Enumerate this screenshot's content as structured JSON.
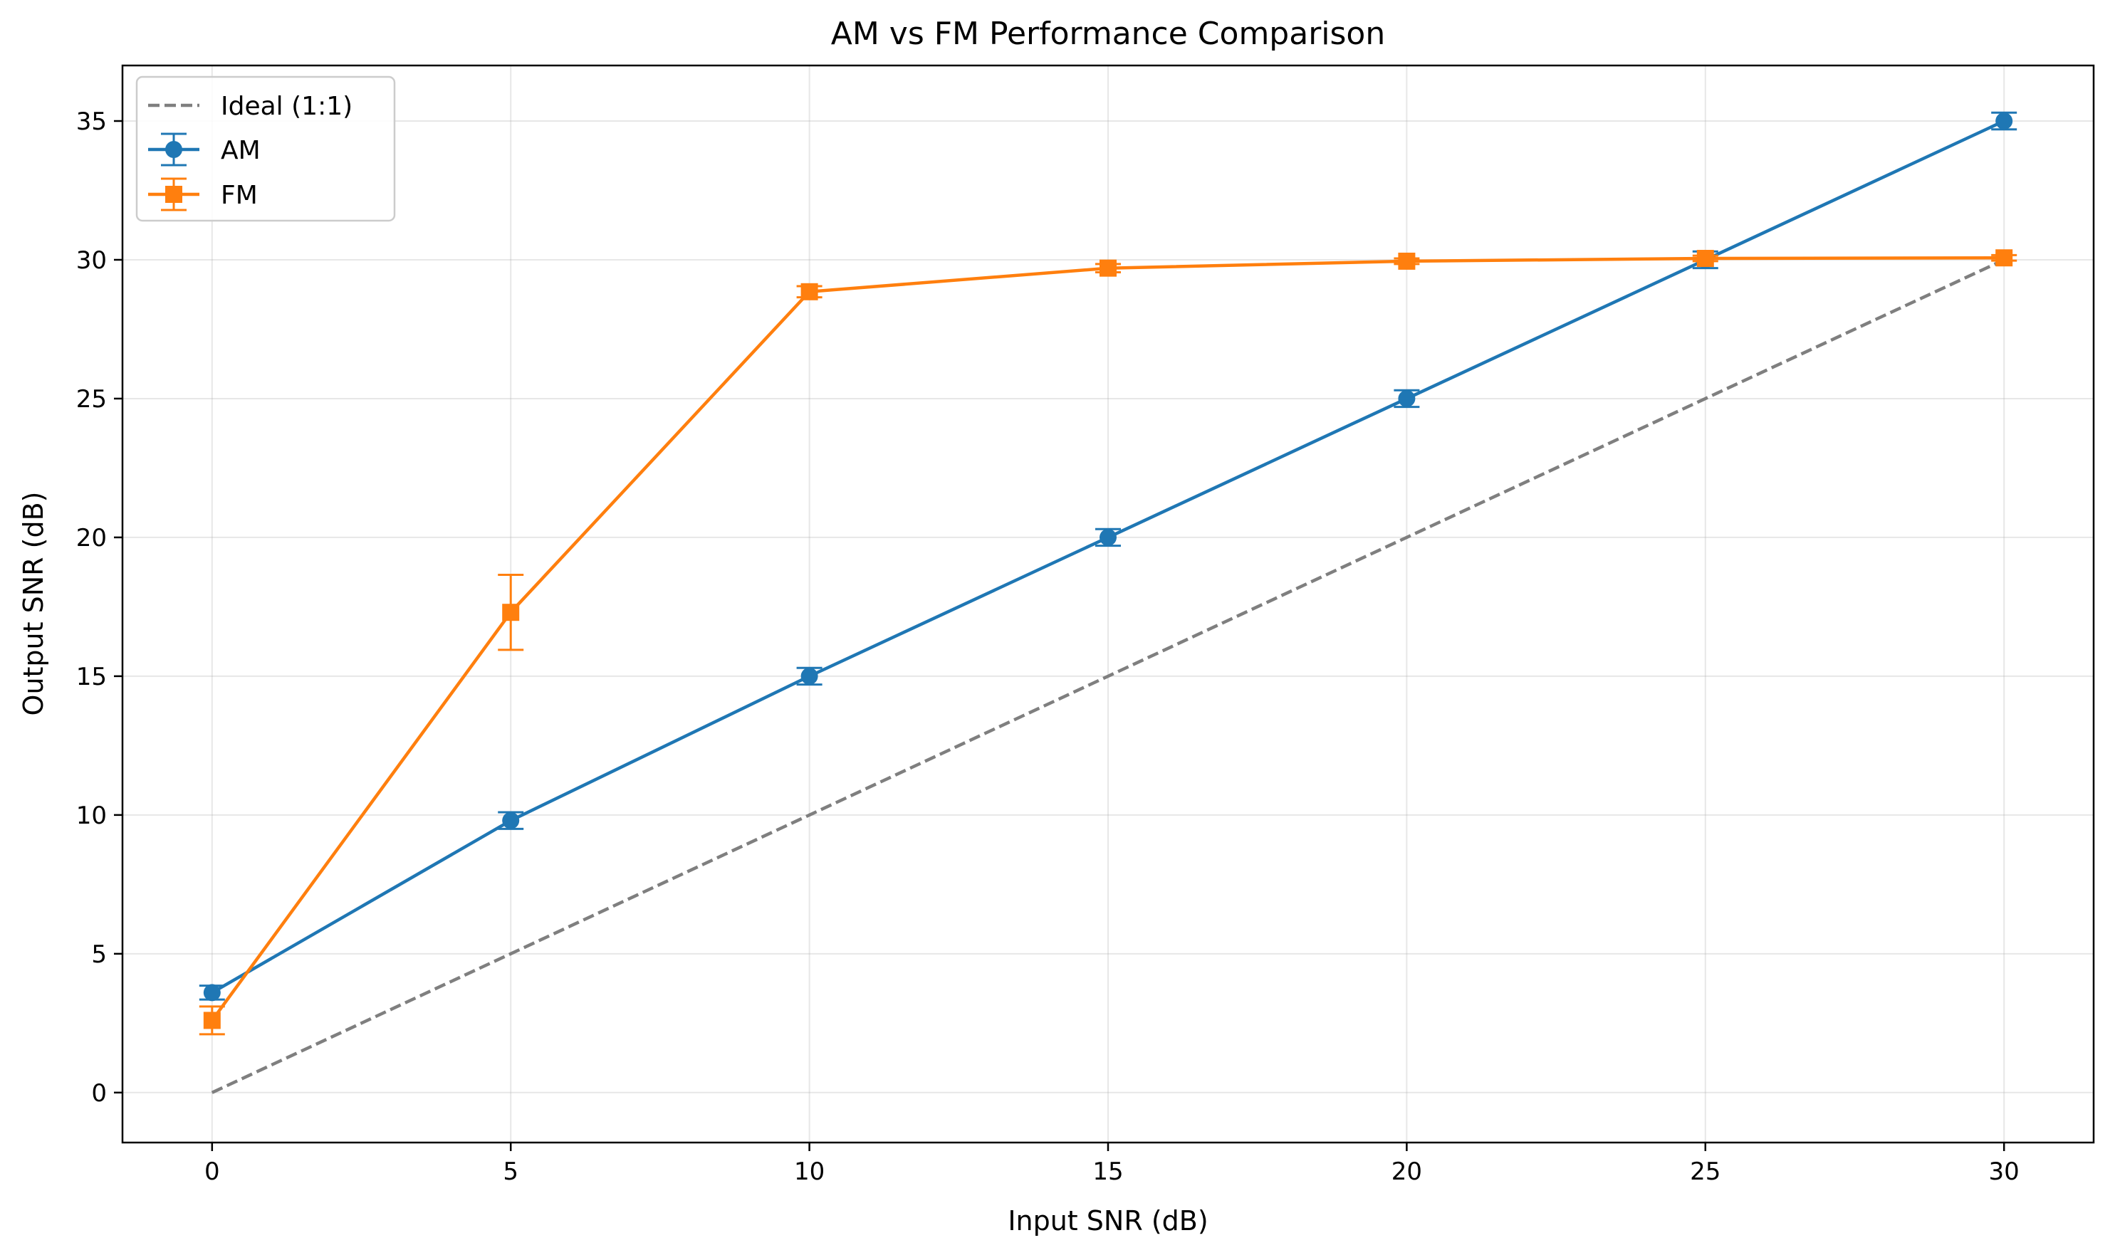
{
  "chart_data": {
    "type": "line",
    "title": "AM vs FM Performance Comparison",
    "xlabel": "Input SNR (dB)",
    "ylabel": "Output SNR (dB)",
    "xlim": [
      -1.5,
      31.5
    ],
    "ylim": [
      -1.8,
      37
    ],
    "xticks": [
      0,
      5,
      10,
      15,
      20,
      25,
      30
    ],
    "yticks": [
      0,
      5,
      10,
      15,
      20,
      25,
      30,
      35
    ],
    "grid": true,
    "legend_position": "top-left",
    "x": [
      0,
      5,
      10,
      15,
      20,
      25,
      30
    ],
    "series": [
      {
        "name": "Ideal (1:1)",
        "style": "dashed",
        "color": "#7f7f7f",
        "values": [
          0,
          5,
          10,
          15,
          20,
          25,
          30
        ]
      },
      {
        "name": "AM",
        "marker": "circle",
        "color": "#1f77b4",
        "values": [
          3.6,
          9.8,
          15.0,
          20.0,
          25.0,
          30.0,
          35.0
        ],
        "errors": [
          0.25,
          0.3,
          0.3,
          0.3,
          0.3,
          0.3,
          0.3
        ]
      },
      {
        "name": "FM",
        "marker": "square",
        "color": "#ff7f0e",
        "values": [
          2.6,
          17.3,
          28.85,
          29.7,
          29.95,
          30.05,
          30.07
        ],
        "errors": [
          0.5,
          1.35,
          0.2,
          0.15,
          0.1,
          0.1,
          0.1
        ]
      }
    ]
  }
}
